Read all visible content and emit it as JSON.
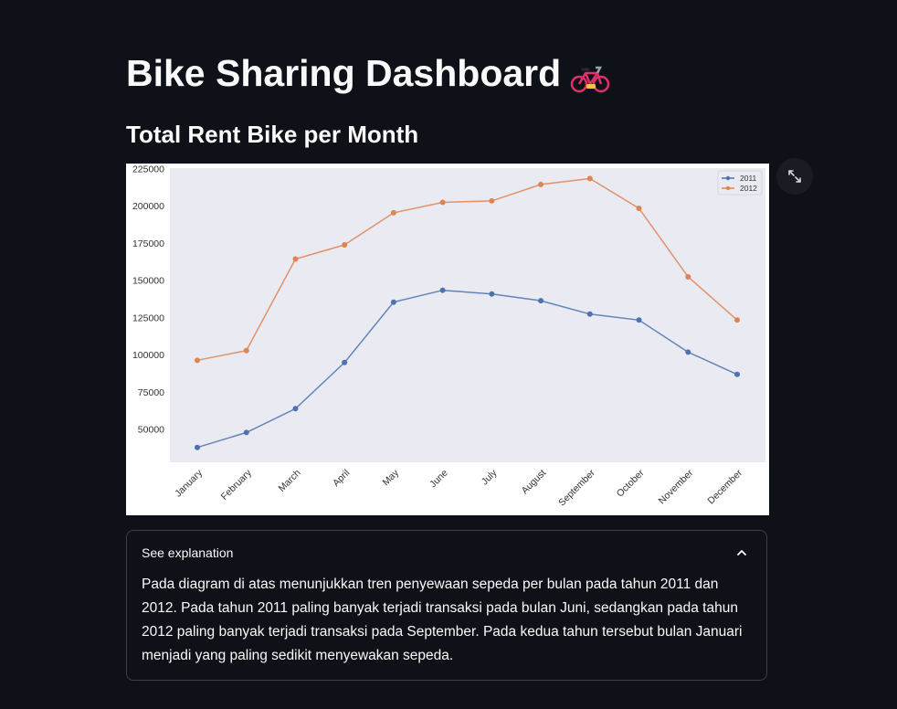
{
  "page": {
    "title": "Bike Sharing Dashboard",
    "title_icon": "bicycle-icon",
    "section_title": "Total Rent Bike per Month"
  },
  "colors": {
    "background": "#0e1117",
    "plot_background": "#eaeaf2",
    "series_2011": "#4c72b0",
    "series_2012": "#dd8452"
  },
  "chart_data": {
    "type": "line",
    "title": "",
    "xlabel": "",
    "ylabel": "",
    "categories": [
      "January",
      "February",
      "March",
      "April",
      "May",
      "June",
      "July",
      "August",
      "September",
      "October",
      "November",
      "December"
    ],
    "series": [
      {
        "name": "2011",
        "values": [
          38000,
          48000,
          64000,
          95000,
          135500,
          143500,
          141000,
          136500,
          127500,
          123500,
          102000,
          87000
        ]
      },
      {
        "name": "2012",
        "values": [
          96500,
          103000,
          164500,
          174000,
          195500,
          202500,
          203500,
          214500,
          218500,
          198500,
          152500,
          123500
        ]
      }
    ],
    "y_ticks": [
      "50000",
      "75000",
      "100000",
      "125000",
      "150000",
      "175000",
      "200000",
      "225000"
    ],
    "ylim": [
      28000,
      225500
    ],
    "grid": false,
    "legend_position": "top-right"
  },
  "toolbar": {
    "fullscreen_icon": "expand-icon"
  },
  "expander": {
    "label": "See explanation",
    "toggle_icon": "chevron-up-icon",
    "text": "Pada diagram di atas menunjukkan tren penyewaan sepeda per bulan pada tahun 2011 dan 2012. Pada tahun 2011 paling banyak terjadi transaksi pada bulan Juni, sedangkan pada tahun 2012 paling banyak terjadi transaksi pada September. Pada kedua tahun tersebut bulan Januari menjadi yang paling sedikit menyewakan sepeda."
  }
}
